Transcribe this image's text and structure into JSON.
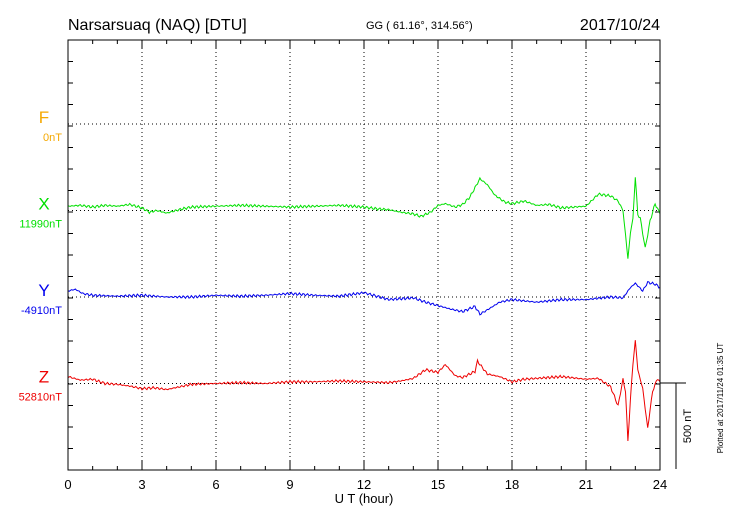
{
  "header": {
    "station": "Narsarsuaq (NAQ)  [DTU]",
    "coords": "GG ( 61.16°, 314.56°)",
    "date": "2017/10/24"
  },
  "footer": {
    "plotted": "Plotted at 2017/11/24 01:35 UT"
  },
  "chart_data": {
    "type": "line",
    "xlabel": "U T (hour)",
    "xlim": [
      0,
      24
    ],
    "xticks": [
      0,
      3,
      6,
      9,
      12,
      15,
      18,
      21,
      24
    ],
    "grid": true,
    "scale_bar": {
      "label": "500 nT",
      "value": 500
    },
    "series": [
      {
        "name": "F",
        "baseline_label": "0nT",
        "color": "#f5a800",
        "offset": 0,
        "points": []
      },
      {
        "name": "X",
        "baseline_label": "11990nT",
        "color": "#00e000",
        "offset": 1,
        "points": [
          [
            0,
            25
          ],
          [
            0.5,
            30
          ],
          [
            1,
            20
          ],
          [
            1.5,
            30
          ],
          [
            2,
            25
          ],
          [
            2.5,
            35
          ],
          [
            3,
            15
          ],
          [
            3.3,
            -10
          ],
          [
            3.6,
            0
          ],
          [
            4,
            -15
          ],
          [
            4.5,
            5
          ],
          [
            5,
            20
          ],
          [
            6,
            25
          ],
          [
            7,
            30
          ],
          [
            8,
            25
          ],
          [
            9,
            20
          ],
          [
            10,
            25
          ],
          [
            11,
            30
          ],
          [
            12,
            20
          ],
          [
            12.5,
            10
          ],
          [
            13,
            5
          ],
          [
            13.5,
            -10
          ],
          [
            14,
            -20
          ],
          [
            14.3,
            -35
          ],
          [
            14.7,
            -10
          ],
          [
            15,
            30
          ],
          [
            15.3,
            40
          ],
          [
            15.7,
            20
          ],
          [
            16,
            35
          ],
          [
            16.3,
            80
          ],
          [
            16.7,
            185
          ],
          [
            17,
            150
          ],
          [
            17.3,
            90
          ],
          [
            17.7,
            50
          ],
          [
            18,
            40
          ],
          [
            18.5,
            55
          ],
          [
            19,
            30
          ],
          [
            19.5,
            35
          ],
          [
            20,
            15
          ],
          [
            20.5,
            20
          ],
          [
            21,
            25
          ],
          [
            21.5,
            95
          ],
          [
            22,
            85
          ],
          [
            22.3,
            55
          ],
          [
            22.5,
            0
          ],
          [
            22.7,
            -280
          ],
          [
            22.8,
            -130
          ],
          [
            22.9,
            -50
          ],
          [
            23.0,
            195
          ],
          [
            23.1,
            -25
          ],
          [
            23.2,
            -45
          ],
          [
            23.4,
            -220
          ],
          [
            23.6,
            -60
          ],
          [
            23.8,
            40
          ],
          [
            24,
            -20
          ]
        ]
      },
      {
        "name": "Y",
        "baseline_label": "-4910nT",
        "color": "#0000ee",
        "offset": 2,
        "points": [
          [
            0,
            35
          ],
          [
            0.3,
            45
          ],
          [
            0.6,
            20
          ],
          [
            1,
            10
          ],
          [
            2,
            5
          ],
          [
            3,
            10
          ],
          [
            4,
            0
          ],
          [
            5,
            0
          ],
          [
            6,
            10
          ],
          [
            7,
            5
          ],
          [
            8,
            10
          ],
          [
            9,
            20
          ],
          [
            10,
            10
          ],
          [
            11,
            5
          ],
          [
            12,
            25
          ],
          [
            12.5,
            5
          ],
          [
            13,
            -15
          ],
          [
            14,
            -5
          ],
          [
            14.5,
            -30
          ],
          [
            15,
            -50
          ],
          [
            15.5,
            -70
          ],
          [
            16,
            -85
          ],
          [
            16.5,
            -55
          ],
          [
            16.7,
            -100
          ],
          [
            17,
            -75
          ],
          [
            17.5,
            -30
          ],
          [
            18,
            -15
          ],
          [
            19,
            -30
          ],
          [
            20,
            -15
          ],
          [
            21,
            -15
          ],
          [
            22,
            0
          ],
          [
            22.5,
            -5
          ],
          [
            22.8,
            55
          ],
          [
            23,
            80
          ],
          [
            23.3,
            35
          ],
          [
            23.5,
            85
          ],
          [
            23.8,
            75
          ],
          [
            24,
            55
          ]
        ]
      },
      {
        "name": "Z",
        "baseline_label": "52810nT",
        "color": "#ee0000",
        "offset": 3,
        "points": [
          [
            0,
            40
          ],
          [
            0.5,
            20
          ],
          [
            1,
            25
          ],
          [
            1.5,
            0
          ],
          [
            2,
            -5
          ],
          [
            2.5,
            -15
          ],
          [
            3,
            -30
          ],
          [
            3.5,
            -25
          ],
          [
            4,
            -35
          ],
          [
            4.5,
            -20
          ],
          [
            5,
            -5
          ],
          [
            6,
            0
          ],
          [
            7,
            5
          ],
          [
            8,
            0
          ],
          [
            9,
            10
          ],
          [
            10,
            10
          ],
          [
            11,
            15
          ],
          [
            12,
            10
          ],
          [
            13,
            5
          ],
          [
            13.5,
            15
          ],
          [
            14,
            30
          ],
          [
            14.5,
            80
          ],
          [
            15,
            65
          ],
          [
            15.3,
            110
          ],
          [
            15.7,
            45
          ],
          [
            16,
            35
          ],
          [
            16.5,
            70
          ],
          [
            16.6,
            130
          ],
          [
            17,
            55
          ],
          [
            17.5,
            40
          ],
          [
            18,
            10
          ],
          [
            18.5,
            25
          ],
          [
            19,
            30
          ],
          [
            20,
            40
          ],
          [
            21,
            25
          ],
          [
            21.5,
            30
          ],
          [
            22,
            -20
          ],
          [
            22.3,
            -130
          ],
          [
            22.5,
            25
          ],
          [
            22.6,
            -45
          ],
          [
            22.7,
            -335
          ],
          [
            22.8,
            -95
          ],
          [
            22.9,
            110
          ],
          [
            23.0,
            250
          ],
          [
            23.1,
            80
          ],
          [
            23.3,
            -30
          ],
          [
            23.5,
            -260
          ],
          [
            23.7,
            -45
          ],
          [
            23.9,
            30
          ],
          [
            24,
            10
          ]
        ]
      }
    ]
  }
}
